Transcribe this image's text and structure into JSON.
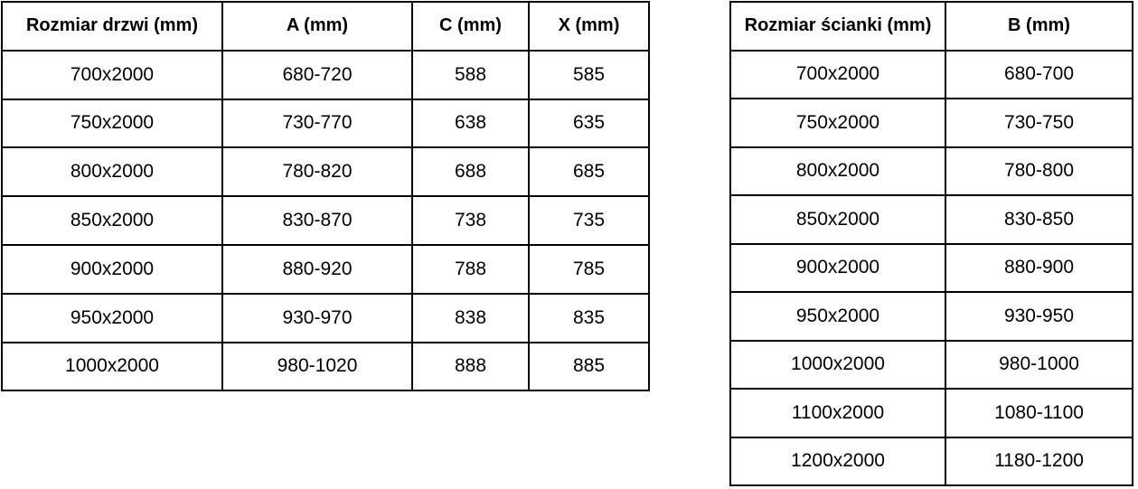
{
  "colors": {
    "background": "#ffffff",
    "border": "#000000",
    "text": "#000000"
  },
  "tables": [
    {
      "id": "door-table",
      "name": "door-size-table",
      "headers": [
        "Rozmiar drzwi (mm)",
        "A (mm)",
        "C (mm)",
        "X (mm)"
      ],
      "rows": [
        [
          "700x2000",
          "680-720",
          "588",
          "585"
        ],
        [
          "750x2000",
          "730-770",
          "638",
          "635"
        ],
        [
          "800x2000",
          "780-820",
          "688",
          "685"
        ],
        [
          "850x2000",
          "830-870",
          "738",
          "735"
        ],
        [
          "900x2000",
          "880-920",
          "788",
          "785"
        ],
        [
          "950x2000",
          "930-970",
          "838",
          "835"
        ],
        [
          "1000x2000",
          "980-1020",
          "888",
          "885"
        ]
      ]
    },
    {
      "id": "wall-table",
      "name": "wall-size-table",
      "headers": [
        "Rozmiar ścianki (mm)",
        "B (mm)"
      ],
      "rows": [
        [
          "700x2000",
          "680-700"
        ],
        [
          "750x2000",
          "730-750"
        ],
        [
          "800x2000",
          "780-800"
        ],
        [
          "850x2000",
          "830-850"
        ],
        [
          "900x2000",
          "880-900"
        ],
        [
          "950x2000",
          "930-950"
        ],
        [
          "1000x2000",
          "980-1000"
        ],
        [
          "1100x2000",
          "1080-1100"
        ],
        [
          "1200x2000",
          "1180-1200"
        ]
      ]
    }
  ]
}
